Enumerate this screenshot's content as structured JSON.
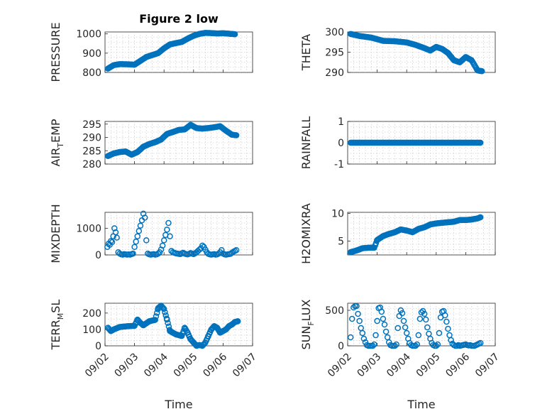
{
  "figure": {
    "title": "Figure 2 low",
    "marker_color": "#0072bd",
    "grid": "minor-dotted",
    "x_axis_label": "Time",
    "x_tick_labels": [
      "09/02",
      "09/03",
      "09/04",
      "09/05",
      "09/06",
      "09/07"
    ]
  },
  "chart_data": [
    {
      "type": "scatter",
      "id": "pressure",
      "ylabel": "PRESSURE",
      "xlim": [
        0,
        5
      ],
      "ylim": [
        800,
        1010
      ],
      "yticks": [
        800,
        900,
        1000
      ],
      "ytick_labels": [
        "800",
        "900",
        "1000"
      ],
      "keys": [
        [
          0.1,
          820
        ],
        [
          0.3,
          838
        ],
        [
          0.5,
          843
        ],
        [
          0.8,
          842
        ],
        [
          1.0,
          840
        ],
        [
          1.2,
          860
        ],
        [
          1.4,
          880
        ],
        [
          1.6,
          890
        ],
        [
          1.8,
          900
        ],
        [
          2.0,
          925
        ],
        [
          2.2,
          945
        ],
        [
          2.4,
          952
        ],
        [
          2.6,
          958
        ],
        [
          2.8,
          975
        ],
        [
          3.0,
          990
        ],
        [
          3.2,
          1000
        ],
        [
          3.4,
          1005
        ],
        [
          3.6,
          1004
        ],
        [
          3.8,
          1002
        ],
        [
          4.0,
          1003
        ],
        [
          4.2,
          1001
        ],
        [
          4.4,
          998
        ]
      ],
      "x": [],
      "y": []
    },
    {
      "type": "scatter",
      "id": "theta",
      "ylabel": "THETA",
      "xlim": [
        0,
        5
      ],
      "ylim": [
        290,
        300
      ],
      "yticks": [
        290,
        295,
        300
      ],
      "ytick_labels": [
        "290",
        "295",
        "300"
      ],
      "keys": [
        [
          0.1,
          299.5
        ],
        [
          0.4,
          299.0
        ],
        [
          0.8,
          298.6
        ],
        [
          1.2,
          297.8
        ],
        [
          1.6,
          297.7
        ],
        [
          2.0,
          297.4
        ],
        [
          2.3,
          296.8
        ],
        [
          2.6,
          296.0
        ],
        [
          2.8,
          295.4
        ],
        [
          3.0,
          296.3
        ],
        [
          3.2,
          295.8
        ],
        [
          3.4,
          294.8
        ],
        [
          3.6,
          293.0
        ],
        [
          3.8,
          292.5
        ],
        [
          4.0,
          293.8
        ],
        [
          4.2,
          293.0
        ],
        [
          4.4,
          290.5
        ],
        [
          4.55,
          290.3
        ]
      ],
      "x": [],
      "y": []
    },
    {
      "type": "scatter",
      "id": "air-temp",
      "ylabel": "AIR",
      "ylabel_sub": "T",
      "ylabel_suffix": "EMP",
      "xlim": [
        0,
        5
      ],
      "ylim": [
        280,
        296
      ],
      "yticks": [
        280,
        285,
        290,
        295
      ],
      "ytick_labels": [
        "280",
        "285",
        "290",
        "295"
      ],
      "keys": [
        [
          0.1,
          283
        ],
        [
          0.3,
          284
        ],
        [
          0.5,
          284.5
        ],
        [
          0.7,
          284.7
        ],
        [
          0.9,
          283.5
        ],
        [
          1.1,
          284.5
        ],
        [
          1.3,
          286.5
        ],
        [
          1.5,
          287.5
        ],
        [
          1.7,
          288.2
        ],
        [
          1.9,
          289.2
        ],
        [
          2.1,
          291.3
        ],
        [
          2.3,
          292
        ],
        [
          2.5,
          292.8
        ],
        [
          2.7,
          293
        ],
        [
          2.9,
          294.7
        ],
        [
          3.1,
          293.5
        ],
        [
          3.3,
          293.3
        ],
        [
          3.5,
          293.5
        ],
        [
          3.7,
          293.8
        ],
        [
          3.9,
          294.2
        ],
        [
          4.1,
          292.5
        ],
        [
          4.3,
          291
        ],
        [
          4.45,
          290.8
        ]
      ],
      "x": [],
      "y": []
    },
    {
      "type": "scatter",
      "id": "rainfall",
      "ylabel": "RAINFALL",
      "xlim": [
        0,
        5
      ],
      "ylim": [
        -1,
        1
      ],
      "yticks": [
        -1,
        0,
        1
      ],
      "ytick_labels": [
        "-1",
        "0",
        "1"
      ],
      "keys": [
        [
          0.1,
          0
        ],
        [
          4.5,
          0
        ]
      ],
      "x": [],
      "y": []
    },
    {
      "type": "scatter",
      "id": "mixdepth",
      "ylabel": "MIXDEPTH",
      "xlim": [
        0,
        5
      ],
      "ylim": [
        0,
        1600
      ],
      "yticks": [
        0,
        1000
      ],
      "ytick_labels": [
        "0",
        "1000"
      ],
      "x": [
        0.08,
        0.12,
        0.16,
        0.2,
        0.24,
        0.28,
        0.32,
        0.36,
        0.4,
        0.45,
        0.5,
        0.55,
        0.6,
        0.65,
        0.7,
        0.75,
        0.8,
        0.85,
        0.9,
        0.95,
        1.0,
        1.05,
        1.1,
        1.15,
        1.2,
        1.25,
        1.3,
        1.35,
        1.4,
        1.45,
        1.5,
        1.55,
        1.6,
        1.65,
        1.7,
        1.75,
        1.8,
        1.85,
        1.9,
        1.95,
        2.0,
        2.05,
        2.1,
        2.15,
        2.2,
        2.25,
        2.3,
        2.35,
        2.4,
        2.45,
        2.5,
        2.55,
        2.6,
        2.65,
        2.7,
        2.75,
        2.8,
        2.85,
        2.9,
        2.95,
        3.0,
        3.05,
        3.1,
        3.15,
        3.2,
        3.25,
        3.3,
        3.35,
        3.4,
        3.45,
        3.5,
        3.55,
        3.6,
        3.65,
        3.7,
        3.75,
        3.8,
        3.85,
        3.9,
        3.95,
        4.0,
        4.05,
        4.1,
        4.15,
        4.2,
        4.25,
        4.3,
        4.35,
        4.4,
        4.45
      ],
      "y": [
        300,
        420,
        380,
        520,
        480,
        700,
        1000,
        850,
        650,
        100,
        50,
        20,
        10,
        30,
        20,
        10,
        20,
        10,
        30,
        50,
        300,
        500,
        700,
        900,
        1100,
        1300,
        1550,
        1400,
        550,
        50,
        20,
        10,
        20,
        30,
        10,
        20,
        50,
        100,
        200,
        350,
        550,
        750,
        950,
        1200,
        700,
        150,
        100,
        80,
        60,
        50,
        40,
        30,
        60,
        80,
        50,
        30,
        20,
        40,
        70,
        50,
        30,
        60,
        100,
        150,
        200,
        250,
        350,
        300,
        200,
        100,
        40,
        20,
        10,
        20,
        30,
        10,
        20,
        50,
        100,
        180,
        50,
        20,
        10,
        20,
        30,
        40,
        80,
        120,
        150,
        180
      ],
      "keys": []
    },
    {
      "type": "scatter",
      "id": "h2omixra",
      "ylabel": "H2OMIXRA",
      "xlim": [
        0,
        5
      ],
      "ylim": [
        2.5,
        10.2
      ],
      "yticks": [
        5,
        10
      ],
      "ytick_labels": [
        "5",
        "10"
      ],
      "keys": [
        [
          0.1,
          3
        ],
        [
          0.3,
          3.3
        ],
        [
          0.5,
          3.7
        ],
        [
          0.7,
          3.8
        ],
        [
          0.9,
          3.8
        ],
        [
          1.0,
          5.2
        ],
        [
          1.2,
          5.9
        ],
        [
          1.4,
          6.3
        ],
        [
          1.6,
          6.6
        ],
        [
          1.8,
          7.1
        ],
        [
          2.0,
          6.9
        ],
        [
          2.2,
          6.6
        ],
        [
          2.4,
          7.2
        ],
        [
          2.6,
          7.5
        ],
        [
          2.8,
          8.0
        ],
        [
          3.0,
          8.2
        ],
        [
          3.2,
          8.3
        ],
        [
          3.4,
          8.4
        ],
        [
          3.6,
          8.5
        ],
        [
          3.8,
          8.8
        ],
        [
          4.0,
          8.8
        ],
        [
          4.2,
          8.9
        ],
        [
          4.4,
          9.1
        ],
        [
          4.5,
          9.3
        ]
      ],
      "x": [],
      "y": []
    },
    {
      "type": "scatter",
      "id": "terr-msl",
      "ylabel": "TERR",
      "ylabel_sub": "M",
      "ylabel_suffix": "SL",
      "xlim": [
        0,
        5
      ],
      "ylim": [
        0,
        260
      ],
      "yticks": [
        0,
        100,
        200
      ],
      "ytick_labels": [
        "0",
        "100",
        "200"
      ],
      "keys": [
        [
          0.1,
          110
        ],
        [
          0.2,
          90
        ],
        [
          0.3,
          100
        ],
        [
          0.5,
          115
        ],
        [
          0.8,
          120
        ],
        [
          1.0,
          122
        ],
        [
          1.1,
          160
        ],
        [
          1.2,
          140
        ],
        [
          1.3,
          125
        ],
        [
          1.5,
          150
        ],
        [
          1.7,
          158
        ],
        [
          1.8,
          230
        ],
        [
          1.9,
          245
        ],
        [
          2.0,
          225
        ],
        [
          2.1,
          160
        ],
        [
          2.2,
          90
        ],
        [
          2.4,
          70
        ],
        [
          2.6,
          60
        ],
        [
          2.7,
          110
        ],
        [
          2.8,
          80
        ],
        [
          2.9,
          40
        ],
        [
          3.0,
          20
        ],
        [
          3.1,
          0
        ],
        [
          3.2,
          5
        ],
        [
          3.3,
          0
        ],
        [
          3.4,
          20
        ],
        [
          3.5,
          60
        ],
        [
          3.6,
          100
        ],
        [
          3.7,
          120
        ],
        [
          3.8,
          110
        ],
        [
          3.9,
          80
        ],
        [
          4.0,
          90
        ],
        [
          4.1,
          100
        ],
        [
          4.2,
          120
        ],
        [
          4.3,
          130
        ],
        [
          4.4,
          145
        ],
        [
          4.5,
          150
        ]
      ],
      "x": [],
      "y": []
    },
    {
      "type": "scatter",
      "id": "sun-flux",
      "ylabel": "SUN",
      "ylabel_sub": "F",
      "ylabel_suffix": "LUX",
      "xlim": [
        0,
        5
      ],
      "ylim": [
        0,
        600
      ],
      "yticks": [
        0,
        500
      ],
      "ytick_labels": [
        "0",
        "500"
      ],
      "x": [
        0.1,
        0.15,
        0.2,
        0.25,
        0.3,
        0.35,
        0.4,
        0.45,
        0.5,
        0.55,
        0.6,
        0.65,
        0.7,
        0.75,
        0.8,
        0.85,
        0.9,
        0.95,
        1.0,
        1.05,
        1.1,
        1.15,
        1.2,
        1.25,
        1.3,
        1.35,
        1.4,
        1.45,
        1.5,
        1.55,
        1.6,
        1.65,
        1.7,
        1.75,
        1.8,
        1.85,
        1.9,
        1.95,
        2.0,
        2.05,
        2.1,
        2.15,
        2.2,
        2.25,
        2.3,
        2.35,
        2.4,
        2.45,
        2.5,
        2.55,
        2.6,
        2.65,
        2.7,
        2.75,
        2.8,
        2.85,
        2.9,
        2.95,
        3.0,
        3.05,
        3.1,
        3.15,
        3.2,
        3.25,
        3.3,
        3.35,
        3.4,
        3.45,
        3.5,
        3.55,
        3.6,
        3.65,
        3.7,
        3.75,
        3.8,
        3.85,
        3.9,
        3.95,
        4.0,
        4.05,
        4.1,
        4.15,
        4.2,
        4.25,
        4.3,
        4.35,
        4.4,
        4.45,
        4.5
      ],
      "y": [
        120,
        380,
        540,
        560,
        560,
        450,
        350,
        250,
        180,
        100,
        50,
        10,
        0,
        0,
        0,
        0,
        20,
        150,
        350,
        530,
        540,
        480,
        380,
        300,
        200,
        120,
        50,
        10,
        0,
        0,
        0,
        20,
        250,
        420,
        500,
        460,
        350,
        260,
        180,
        100,
        40,
        10,
        0,
        0,
        0,
        20,
        150,
        380,
        470,
        490,
        450,
        370,
        260,
        170,
        100,
        40,
        10,
        0,
        0,
        20,
        180,
        400,
        480,
        490,
        430,
        340,
        240,
        150,
        80,
        30,
        10,
        0,
        0,
        10,
        0,
        5,
        10,
        15,
        20,
        10,
        5,
        10,
        0,
        0,
        0,
        10,
        20,
        30,
        40
      ],
      "keys": []
    }
  ]
}
